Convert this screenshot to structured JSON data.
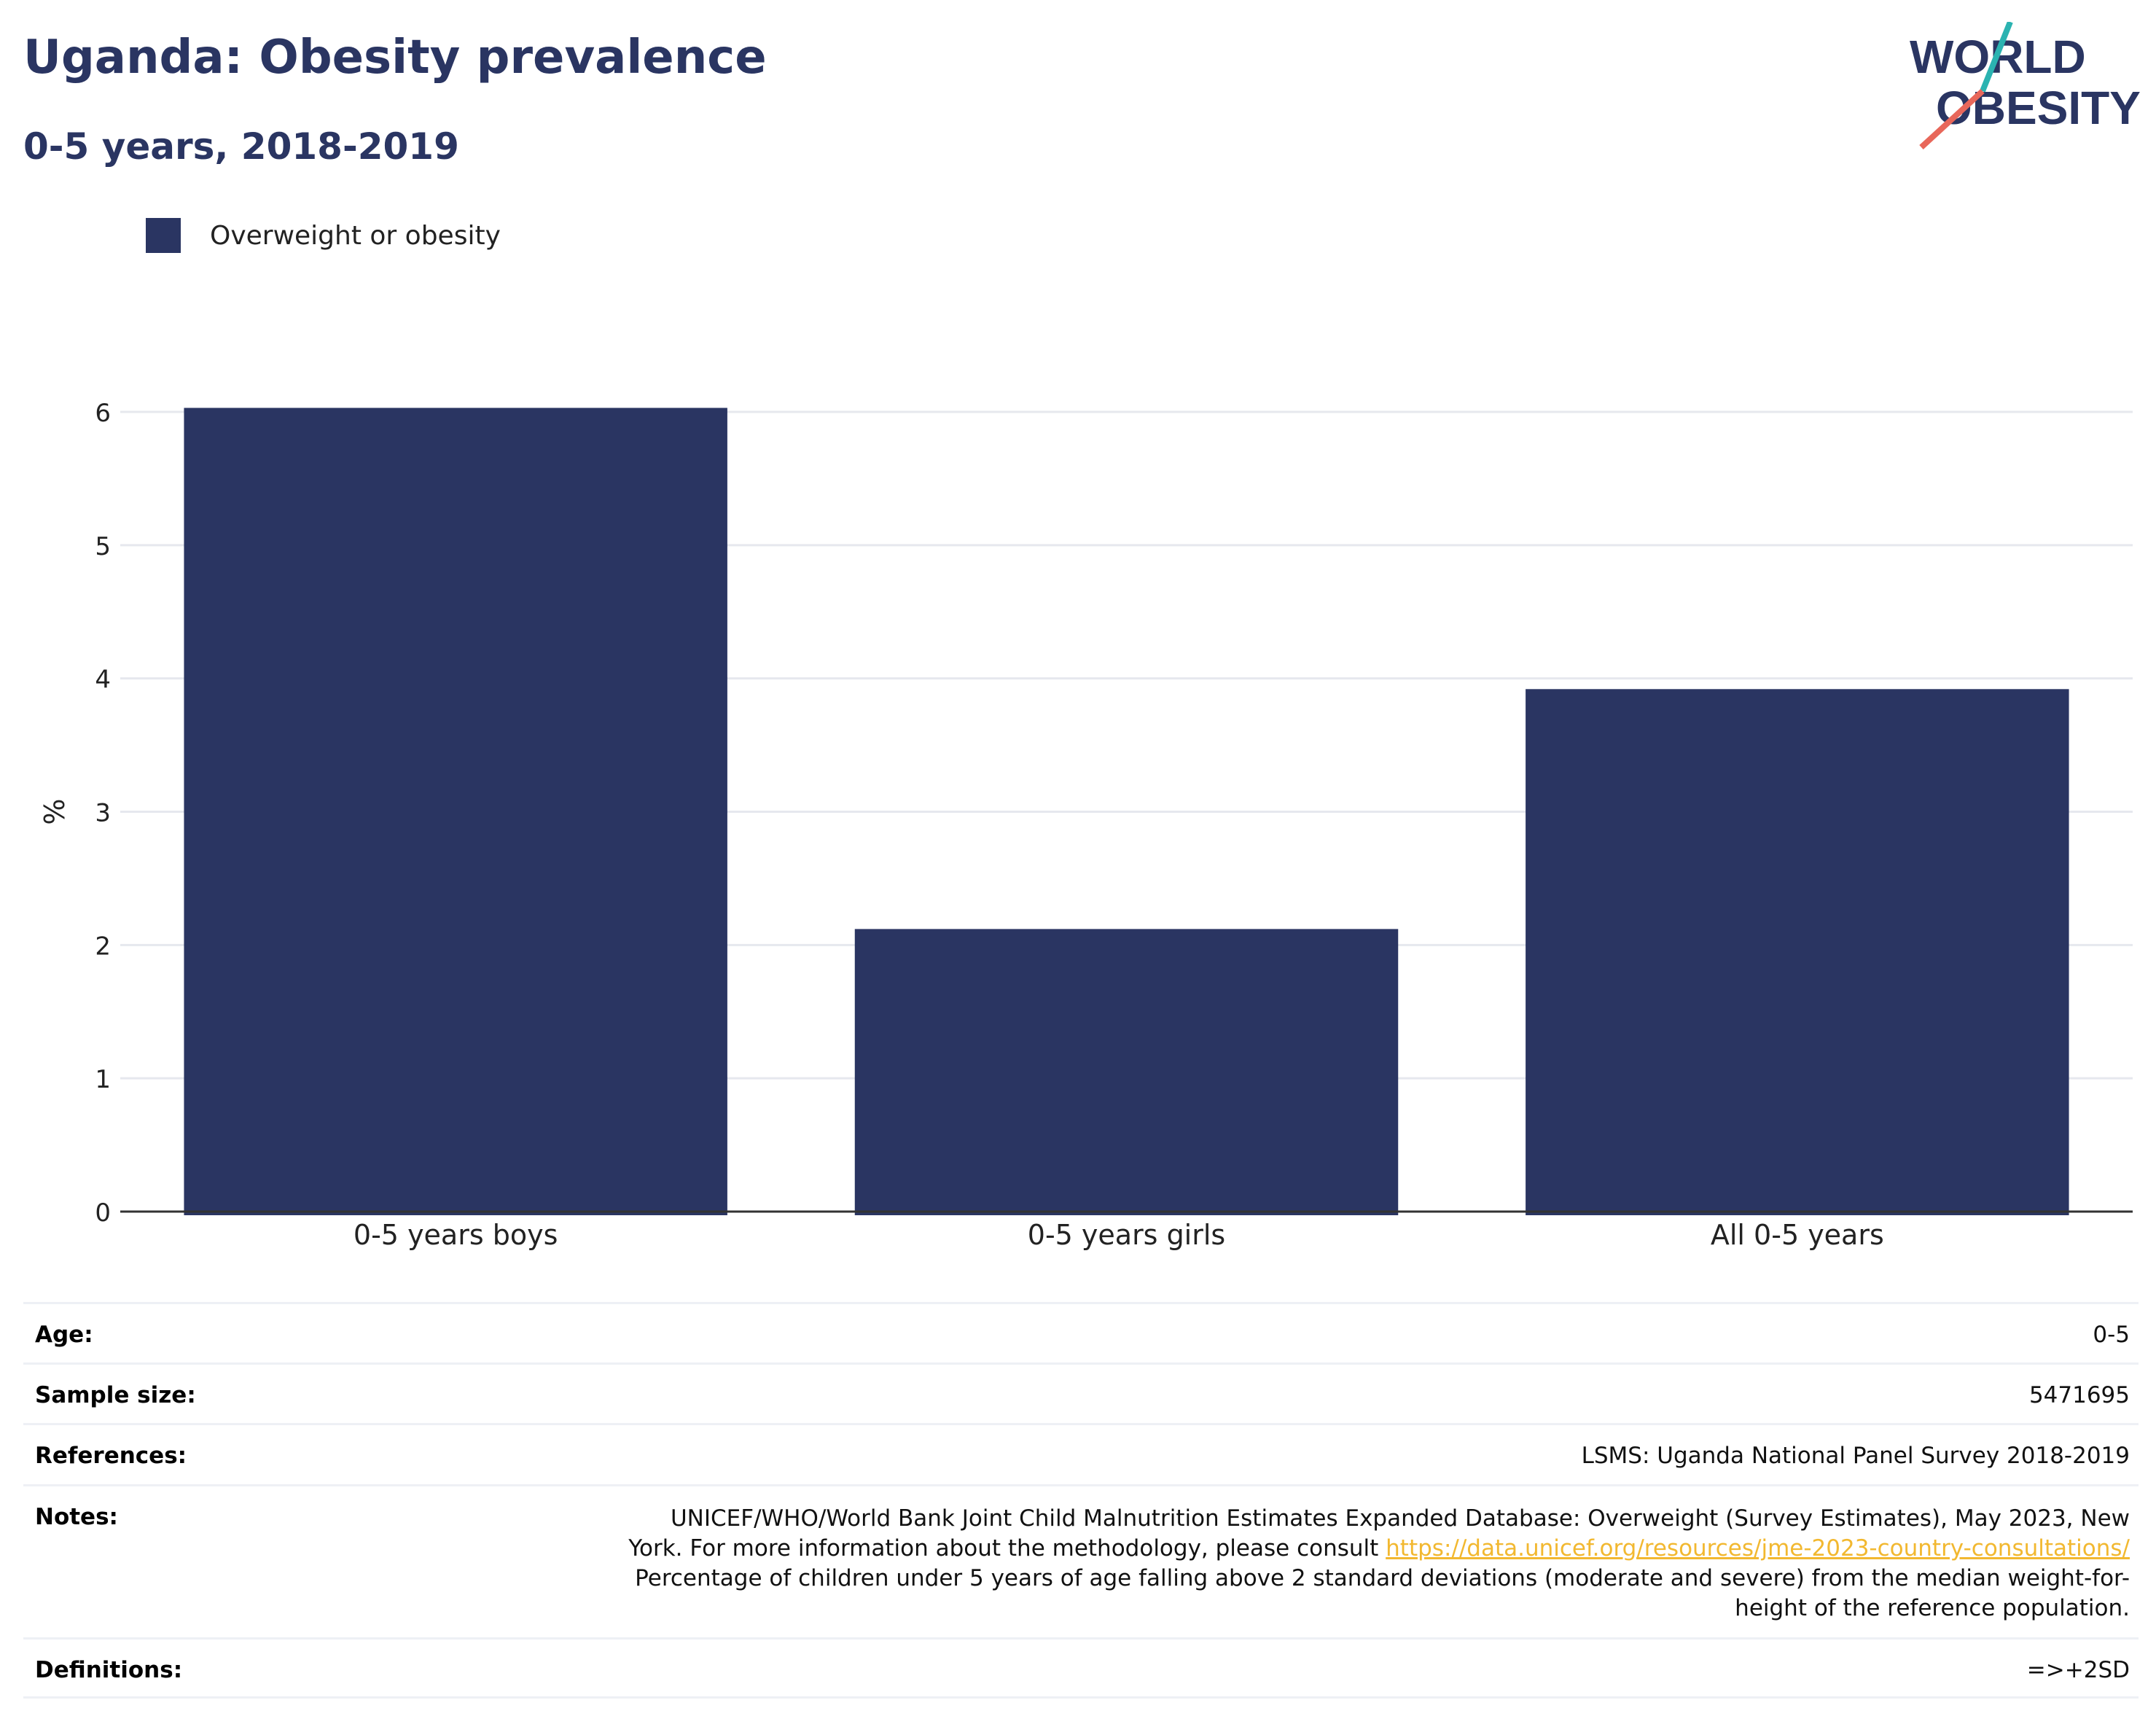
{
  "header": {
    "title": "Uganda: Obesity prevalence",
    "subtitle": "0-5 years, 2018-2019",
    "logo_line1": "WORLD",
    "logo_line2": "OBESITY"
  },
  "legend": {
    "label": "Overweight or obesity"
  },
  "colors": {
    "bar": "#2a3562",
    "accent_teal": "#2bb3b1",
    "accent_coral": "#e8675a",
    "link": "#f2b830"
  },
  "chart_data": {
    "type": "bar",
    "categories": [
      "0-5 years boys",
      "0-5 years girls",
      "All 0-5 years"
    ],
    "series": [
      {
        "name": "Overweight or obesity",
        "values": [
          6.03,
          2.12,
          3.92
        ]
      }
    ],
    "ylabel": "%",
    "ylim": [
      0,
      6
    ],
    "yticks": [
      "0",
      "1",
      "2",
      "3",
      "4",
      "5",
      "6"
    ],
    "grid": true,
    "legend_position": "top-left"
  },
  "info": {
    "age_label": "Age:",
    "age_value": "0-5",
    "sample_label": "Sample size:",
    "sample_value": "5471695",
    "references_label": "References:",
    "references_value": "LSMS: Uganda National Panel Survey 2018-2019",
    "notes_label": "Notes:",
    "notes_line1": "UNICEF/WHO/World Bank Joint Child Malnutrition Estimates Expanded Database: Overweight (Survey Estimates), May 2023, New",
    "notes_line2_prefix": "York. For more information about the methodology, please consult ",
    "notes_link": "https://data.unicef.org/resources/jme-2023-country-consultations/",
    "notes_line3": "Percentage of children under 5 years of age falling above 2 standard deviations (moderate and severe) from the median weight-for-",
    "notes_line4": "height of the reference population.",
    "definitions_label": "Definitions:",
    "definitions_value": "=>+2SD"
  }
}
